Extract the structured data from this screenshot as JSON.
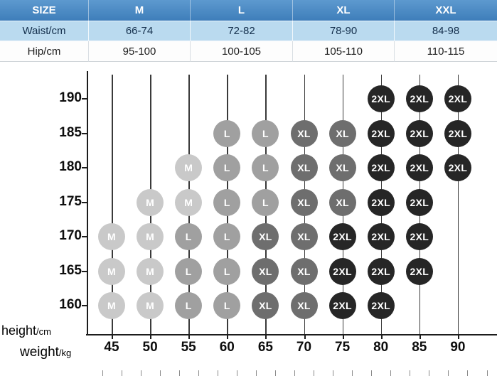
{
  "size_table": {
    "header_label": "SIZE",
    "columns": [
      "M",
      "L",
      "XL",
      "XXL"
    ],
    "rows": [
      {
        "label": "Waist/cm",
        "values": [
          "66-74",
          "72-82",
          "78-90",
          "84-98"
        ]
      },
      {
        "label": "Hip/cm",
        "values": [
          "95-100",
          "100-105",
          "105-110",
          "110-115"
        ]
      }
    ],
    "colors": {
      "header_bg": "#4a89c8",
      "header_text": "#ffffff",
      "waist_row_bg": "#badaef",
      "hip_row_bg": "#fdfdfd"
    }
  },
  "axis_labels": {
    "height_main": "height",
    "height_unit": "/cm",
    "weight_main": "weight",
    "weight_unit": "/kg"
  },
  "chart_data": {
    "type": "scatter",
    "title": "",
    "xlabel": "weight/kg",
    "ylabel": "height/cm",
    "x_ticks": [
      45,
      50,
      55,
      60,
      65,
      70,
      75,
      80,
      85,
      90
    ],
    "y_ticks": [
      160,
      165,
      170,
      175,
      180,
      185,
      190
    ],
    "xlim": [
      45,
      90
    ],
    "ylim": [
      160,
      190
    ],
    "grid": "vertical-only",
    "legend_position": "none",
    "size_colors": {
      "M": "#c9c9c9",
      "L": "#a0a0a0",
      "XL": "#6e6e6e",
      "2XL": "#262626"
    },
    "points": [
      {
        "weight": 80,
        "height": 190,
        "size": "2XL"
      },
      {
        "weight": 85,
        "height": 190,
        "size": "2XL"
      },
      {
        "weight": 90,
        "height": 190,
        "size": "2XL"
      },
      {
        "weight": 60,
        "height": 185,
        "size": "L"
      },
      {
        "weight": 65,
        "height": 185,
        "size": "L"
      },
      {
        "weight": 70,
        "height": 185,
        "size": "XL"
      },
      {
        "weight": 75,
        "height": 185,
        "size": "XL"
      },
      {
        "weight": 80,
        "height": 185,
        "size": "2XL"
      },
      {
        "weight": 85,
        "height": 185,
        "size": "2XL"
      },
      {
        "weight": 90,
        "height": 185,
        "size": "2XL"
      },
      {
        "weight": 55,
        "height": 180,
        "size": "M"
      },
      {
        "weight": 60,
        "height": 180,
        "size": "L"
      },
      {
        "weight": 65,
        "height": 180,
        "size": "L"
      },
      {
        "weight": 70,
        "height": 180,
        "size": "XL"
      },
      {
        "weight": 75,
        "height": 180,
        "size": "XL"
      },
      {
        "weight": 80,
        "height": 180,
        "size": "2XL"
      },
      {
        "weight": 85,
        "height": 180,
        "size": "2XL"
      },
      {
        "weight": 90,
        "height": 180,
        "size": "2XL"
      },
      {
        "weight": 50,
        "height": 175,
        "size": "M"
      },
      {
        "weight": 55,
        "height": 175,
        "size": "M"
      },
      {
        "weight": 60,
        "height": 175,
        "size": "L"
      },
      {
        "weight": 65,
        "height": 175,
        "size": "L"
      },
      {
        "weight": 70,
        "height": 175,
        "size": "XL"
      },
      {
        "weight": 75,
        "height": 175,
        "size": "XL"
      },
      {
        "weight": 80,
        "height": 175,
        "size": "2XL"
      },
      {
        "weight": 85,
        "height": 175,
        "size": "2XL"
      },
      {
        "weight": 45,
        "height": 170,
        "size": "M"
      },
      {
        "weight": 50,
        "height": 170,
        "size": "M"
      },
      {
        "weight": 55,
        "height": 170,
        "size": "L"
      },
      {
        "weight": 60,
        "height": 170,
        "size": "L"
      },
      {
        "weight": 65,
        "height": 170,
        "size": "XL"
      },
      {
        "weight": 70,
        "height": 170,
        "size": "XL"
      },
      {
        "weight": 75,
        "height": 170,
        "size": "2XL"
      },
      {
        "weight": 80,
        "height": 170,
        "size": "2XL"
      },
      {
        "weight": 85,
        "height": 170,
        "size": "2XL"
      },
      {
        "weight": 45,
        "height": 165,
        "size": "M"
      },
      {
        "weight": 50,
        "height": 165,
        "size": "M"
      },
      {
        "weight": 55,
        "height": 165,
        "size": "L"
      },
      {
        "weight": 60,
        "height": 165,
        "size": "L"
      },
      {
        "weight": 65,
        "height": 165,
        "size": "XL"
      },
      {
        "weight": 70,
        "height": 165,
        "size": "XL"
      },
      {
        "weight": 75,
        "height": 165,
        "size": "2XL"
      },
      {
        "weight": 80,
        "height": 165,
        "size": "2XL"
      },
      {
        "weight": 85,
        "height": 165,
        "size": "2XL"
      },
      {
        "weight": 45,
        "height": 160,
        "size": "M"
      },
      {
        "weight": 50,
        "height": 160,
        "size": "M"
      },
      {
        "weight": 55,
        "height": 160,
        "size": "L"
      },
      {
        "weight": 60,
        "height": 160,
        "size": "L"
      },
      {
        "weight": 65,
        "height": 160,
        "size": "XL"
      },
      {
        "weight": 70,
        "height": 160,
        "size": "XL"
      },
      {
        "weight": 75,
        "height": 160,
        "size": "2XL"
      },
      {
        "weight": 80,
        "height": 160,
        "size": "2XL"
      }
    ]
  }
}
